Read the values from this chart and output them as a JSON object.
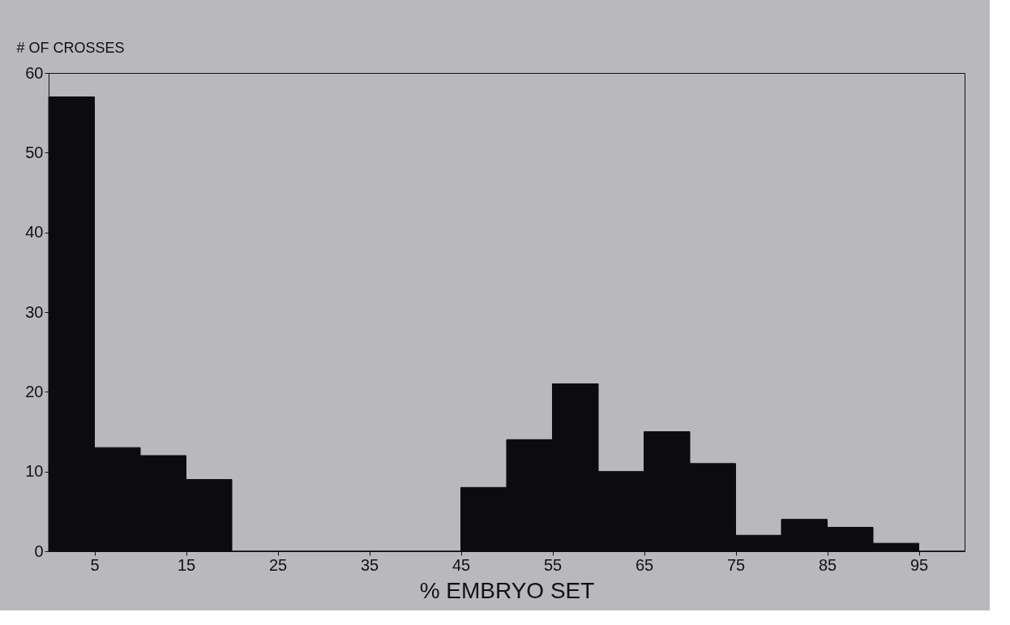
{
  "chart_data": {
    "type": "histogram",
    "ylabel": "# OF CROSSES",
    "xlabel": "% EMBRYO SET",
    "bins": [
      0,
      5,
      10,
      15,
      20,
      25,
      30,
      35,
      40,
      45,
      50,
      55,
      60,
      65,
      70,
      75,
      80,
      85,
      90,
      95,
      100
    ],
    "values": [
      57,
      13,
      12,
      9,
      0,
      0,
      0,
      0,
      0,
      8,
      14,
      21,
      10,
      15,
      11,
      2,
      4,
      3,
      1,
      0
    ],
    "color": "#0c0c10",
    "xlim": [
      0,
      100
    ],
    "xticks": [
      5,
      15,
      25,
      35,
      45,
      55,
      65,
      75,
      85,
      95
    ],
    "ylim": [
      0,
      60
    ],
    "yticks": [
      0,
      10,
      20,
      30,
      40,
      50,
      60
    ],
    "grid": false
  }
}
